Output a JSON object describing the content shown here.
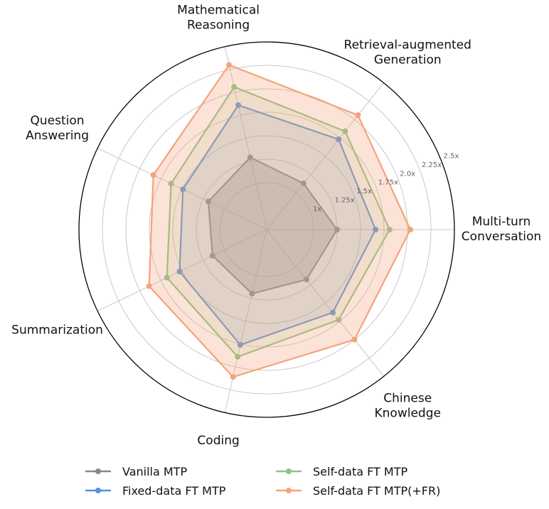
{
  "chart_data": {
    "type": "radar",
    "title": "",
    "categories": [
      [
        "Multi-turn",
        "Conversation"
      ],
      [
        "Retrieval-augmented",
        "Generation"
      ],
      [
        "Mathematical",
        "Reasoning"
      ],
      [
        "Question",
        "Answering"
      ],
      [
        "Summarization"
      ],
      [
        "Coding"
      ],
      [
        "Chinese",
        "Knowledge"
      ]
    ],
    "rlim": [
      0.5,
      2.5
    ],
    "rticks": [
      1,
      1.25,
      1.5,
      1.75,
      2.0,
      2.25,
      2.5
    ],
    "rtick_labels": [
      "1x",
      "1.25x",
      "1.5x",
      "1.75x",
      "2.0x",
      "2.25x",
      "2.5x"
    ],
    "grid": true,
    "legend_position": "bottom",
    "series": [
      {
        "name": "Vanilla MTP",
        "color": "#8a8a86",
        "fill_opacity": 0.35,
        "values": [
          1.25,
          1.13,
          1.29,
          1.19,
          1.14,
          1.2,
          1.18
        ]
      },
      {
        "name": "Fixed-data FT MTP",
        "color": "#5b8fdb",
        "fill_opacity": 0.15,
        "values": [
          1.66,
          1.73,
          1.86,
          1.49,
          1.53,
          1.76,
          1.63
        ]
      },
      {
        "name": "Self-data FT MTP",
        "color": "#8cc487",
        "fill_opacity": 0.15,
        "values": [
          1.81,
          1.84,
          2.06,
          1.63,
          1.68,
          1.89,
          1.73
        ]
      },
      {
        "name": "Self-data FT MTP(+FR)",
        "color": "#f4a37c",
        "fill_opacity": 0.3,
        "values": [
          2.03,
          2.06,
          2.3,
          1.84,
          1.89,
          2.11,
          2.0
        ]
      }
    ]
  }
}
